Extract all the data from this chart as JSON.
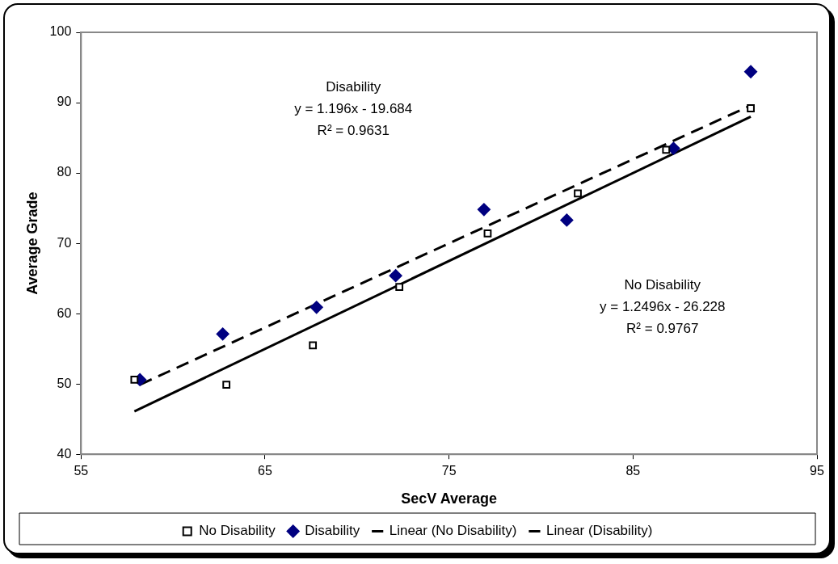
{
  "chart_data": {
    "type": "scatter",
    "xlabel": "SecV Average",
    "ylabel": "Average Grade",
    "xlim": [
      55,
      95
    ],
    "xticks": [
      55,
      65,
      75,
      85,
      95
    ],
    "ylim": [
      40,
      100
    ],
    "yticks": [
      40,
      50,
      60,
      70,
      80,
      90,
      100
    ],
    "grid": false,
    "legend": "bottom",
    "series": [
      {
        "name": "No Disability",
        "type": "scatter",
        "marker": "square",
        "color": "#000000",
        "x": [
          57.9,
          62.9,
          67.6,
          72.3,
          77.1,
          82.0,
          86.8,
          91.4
        ],
        "values": [
          50.6,
          49.9,
          55.5,
          63.8,
          71.4,
          77.1,
          83.3,
          89.2
        ]
      },
      {
        "name": "Disability",
        "type": "scatter",
        "marker": "diamond",
        "color": "#000080",
        "x": [
          58.2,
          62.7,
          67.8,
          72.1,
          76.9,
          81.4,
          87.2,
          91.4
        ],
        "values": [
          50.6,
          57.1,
          60.9,
          65.4,
          74.8,
          73.3,
          83.5,
          94.4
        ]
      },
      {
        "name": "Linear (No Disability)",
        "type": "line",
        "line_style": "solid",
        "marker": "none",
        "color": "#000000",
        "x": [
          57.9,
          91.4
        ],
        "values": [
          46.1,
          88.0
        ]
      },
      {
        "name": "Linear (Disability)",
        "type": "line",
        "line_style": "dashed",
        "marker": "none",
        "color": "#000000",
        "x": [
          58.2,
          91.4
        ],
        "values": [
          49.9,
          89.6
        ]
      }
    ],
    "annotations": [
      "Disability\ny = 1.196x - 19.684\nR² = 0.9631",
      "No Disability\ny = 1.2496x - 26.228\nR² = 0.9767"
    ]
  }
}
